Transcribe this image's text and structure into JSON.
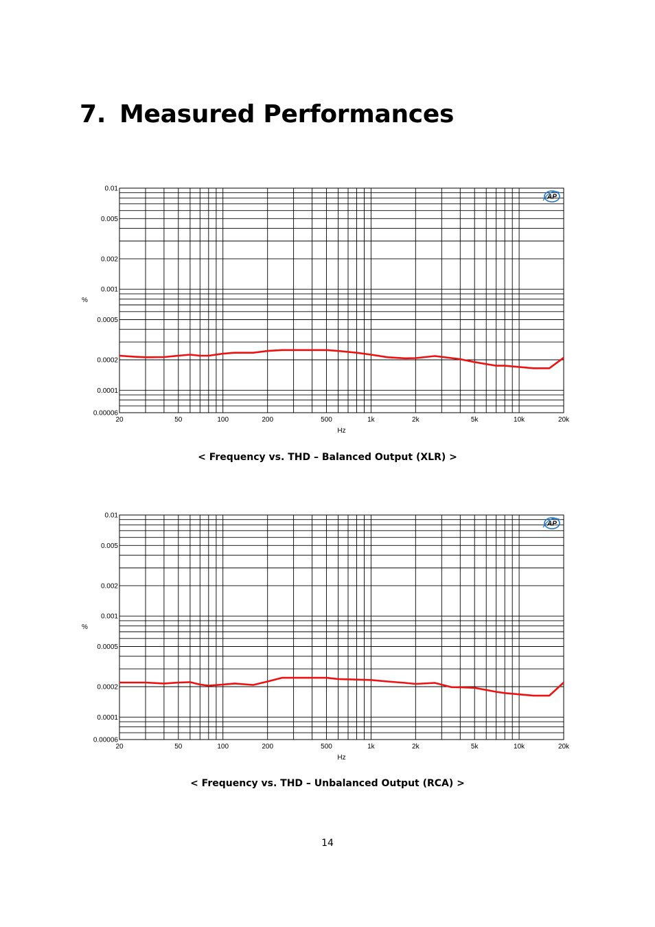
{
  "heading": {
    "number": "7.",
    "text": "Measured Performances"
  },
  "chart_data": [
    {
      "type": "line",
      "title": "",
      "xlabel": "Hz",
      "ylabel": "%",
      "xscale": "log",
      "yscale": "log",
      "xlim": [
        20,
        20000
      ],
      "ylim": [
        6e-05,
        0.01
      ],
      "grid": true,
      "x_ticks": [
        "20",
        "50",
        "100",
        "200",
        "500",
        "1k",
        "2k",
        "5k",
        "10k",
        "20k"
      ],
      "y_ticks": [
        "0.01",
        "0.005",
        "0.002",
        "0.001",
        "0.0005",
        "0.0002",
        "0.0001",
        "0.00006"
      ],
      "logo": "ap-logo",
      "series": [
        {
          "color": "#ee1111",
          "x": [
            20,
            25,
            30,
            40,
            50,
            60,
            70,
            80,
            100,
            120,
            160,
            200,
            250,
            300,
            400,
            500,
            600,
            800,
            1000,
            1300,
            1700,
            2000,
            2700,
            3500,
            4000,
            5000,
            7000,
            8000,
            10000,
            12500,
            16000,
            20000
          ],
          "values": [
            0.00022,
            0.000215,
            0.000212,
            0.000213,
            0.00022,
            0.000225,
            0.00022,
            0.00022,
            0.00023,
            0.000235,
            0.000235,
            0.000245,
            0.00025,
            0.00025,
            0.00025,
            0.00025,
            0.000245,
            0.000235,
            0.000225,
            0.000212,
            0.000207,
            0.000208,
            0.000218,
            0.000208,
            0.000203,
            0.00019,
            0.000175,
            0.000175,
            0.00017,
            0.000165,
            0.000165,
            0.00021
          ]
        }
      ]
    },
    {
      "type": "line",
      "title": "",
      "xlabel": "Hz",
      "ylabel": "%",
      "xscale": "log",
      "yscale": "log",
      "xlim": [
        20,
        20000
      ],
      "ylim": [
        6e-05,
        0.01
      ],
      "grid": true,
      "x_ticks": [
        "20",
        "50",
        "100",
        "200",
        "500",
        "1k",
        "2k",
        "5k",
        "10k",
        "20k"
      ],
      "y_ticks": [
        "0.01",
        "0.005",
        "0.002",
        "0.001",
        "0.0005",
        "0.0002",
        "0.0001",
        "0.00006"
      ],
      "logo": "ap-logo",
      "series": [
        {
          "color": "#ee1111",
          "x": [
            20,
            25,
            30,
            40,
            50,
            60,
            70,
            80,
            100,
            120,
            160,
            200,
            250,
            300,
            400,
            500,
            600,
            800,
            1000,
            1300,
            1700,
            2000,
            2700,
            3500,
            4000,
            5000,
            7000,
            8000,
            10000,
            12500,
            16000,
            20000
          ],
          "values": [
            0.00022,
            0.00022,
            0.00022,
            0.000215,
            0.00022,
            0.000222,
            0.00021,
            0.000205,
            0.00021,
            0.000215,
            0.000208,
            0.000225,
            0.000245,
            0.000245,
            0.000245,
            0.000245,
            0.000238,
            0.000235,
            0.000233,
            0.000225,
            0.000218,
            0.000213,
            0.000218,
            0.000198,
            0.000197,
            0.000195,
            0.000178,
            0.000173,
            0.000168,
            0.000163,
            0.000163,
            0.00022
          ]
        }
      ]
    }
  ],
  "captions": [
    "< Frequency vs. THD – Balanced Output (XLR) >",
    "< Frequency vs. THD – Unbalanced Output (RCA) >"
  ],
  "page_number": "14"
}
